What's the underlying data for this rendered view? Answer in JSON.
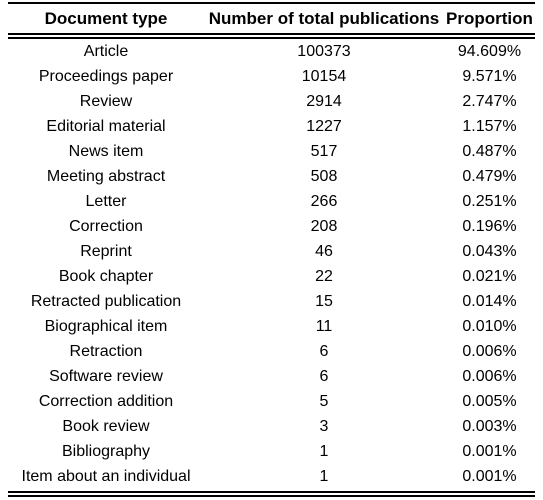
{
  "table": {
    "headers": [
      "Document type",
      "Number of total publications",
      "Proportion"
    ],
    "rows": [
      [
        "Article",
        "100373",
        "94.609%"
      ],
      [
        "Proceedings paper",
        "10154",
        "9.571%"
      ],
      [
        "Review",
        "2914",
        "2.747%"
      ],
      [
        "Editorial material",
        "1227",
        "1.157%"
      ],
      [
        "News item",
        "517",
        "0.487%"
      ],
      [
        "Meeting abstract",
        "508",
        "0.479%"
      ],
      [
        "Letter",
        "266",
        "0.251%"
      ],
      [
        "Correction",
        "208",
        "0.196%"
      ],
      [
        "Reprint",
        "46",
        "0.043%"
      ],
      [
        "Book chapter",
        "22",
        "0.021%"
      ],
      [
        "Retracted publication",
        "15",
        "0.014%"
      ],
      [
        "Biographical item",
        "11",
        "0.010%"
      ],
      [
        "Retraction",
        "6",
        "0.006%"
      ],
      [
        "Software review",
        "6",
        "0.006%"
      ],
      [
        "Correction addition",
        "5",
        "0.005%"
      ],
      [
        "Book review",
        "3",
        "0.003%"
      ],
      [
        "Bibliography",
        "1",
        "0.001%"
      ],
      [
        "Item about an individual",
        "1",
        "0.001%"
      ]
    ]
  }
}
